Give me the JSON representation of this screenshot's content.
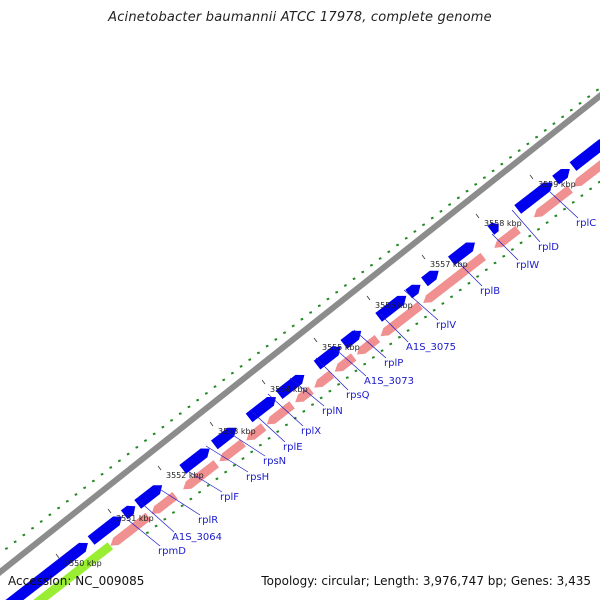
{
  "title": "Acinetobacter baumannii ATCC 17978, complete genome",
  "footer": {
    "accession": "Accession: NC_009085",
    "stats": "Topology: circular; Length: 3,976,747 bp; Genes: 3,435"
  },
  "colors": {
    "backbone": "#8c8c8c",
    "forward_gene": "#0000ee",
    "reverse_gene": "#f09090",
    "highlight_region": "#99ee33",
    "other_region": "#33bbee",
    "gc_skew_ticks": "#228822",
    "label_text": "#1a1acc"
  },
  "tick_labels": [
    "3550 kbp",
    "3551 kbp",
    "3552 kbp",
    "3553 kbp",
    "3554 kbp",
    "3555 kbp",
    "3556 kbp",
    "3557 kbp",
    "3558 kbp",
    "3559 kbp"
  ],
  "gene_labels": [
    "rpmD",
    "A1S_3064",
    "rplR",
    "rplF",
    "rpsH",
    "rpsN",
    "rplE",
    "rplX",
    "rplN",
    "rpsQ",
    "A1S_3073",
    "rplP",
    "A1S_3075",
    "rplV",
    "rplB",
    "rplW",
    "rplD",
    "rplC"
  ]
}
